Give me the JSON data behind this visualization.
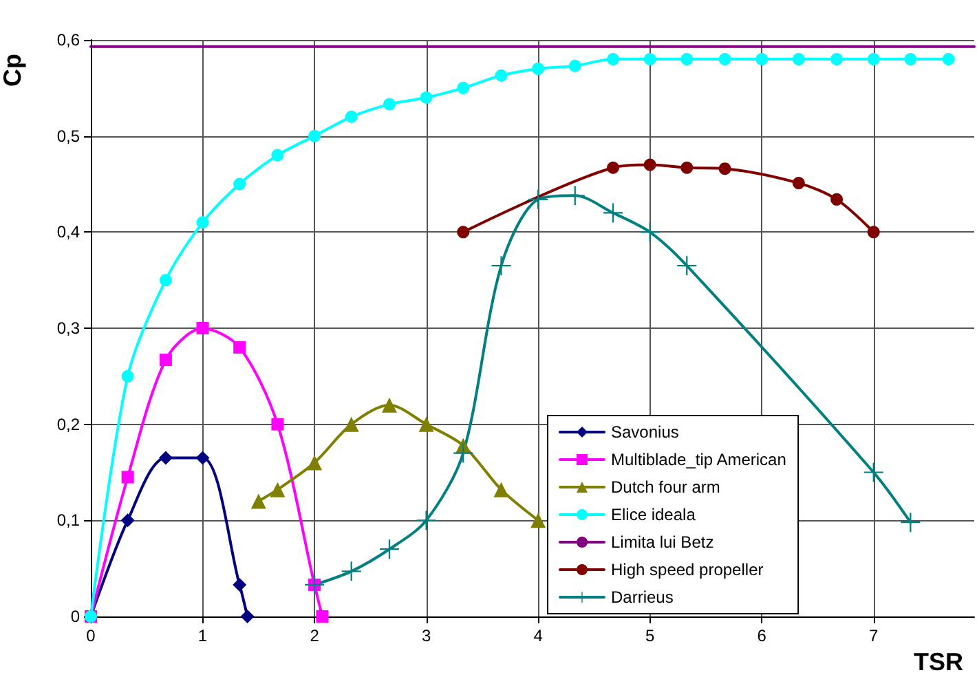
{
  "chart_data": {
    "type": "line",
    "xlabel": "TSR",
    "ylabel": "Cp",
    "xlim": [
      0,
      7.9
    ],
    "xticks": [
      0,
      1,
      2,
      3,
      4,
      5,
      6,
      7
    ],
    "ylim": [
      0,
      0.6
    ],
    "yticks": [
      {
        "value": 0,
        "label": "0"
      },
      {
        "value": 0.1,
        "label": "0,1"
      },
      {
        "value": 0.2,
        "label": "0,2"
      },
      {
        "value": 0.3,
        "label": "0,3"
      },
      {
        "value": 0.4,
        "label": "0,4"
      },
      {
        "value": 0.5,
        "label": "0,5"
      },
      {
        "value": 0.6,
        "label": "0,6"
      }
    ],
    "grid": true,
    "legend": "bottom right",
    "line_style": "solid",
    "series": [
      {
        "name": "Savonius",
        "color": "#000080",
        "marker": "diamond",
        "x": [
          0,
          0.33,
          0.67,
          1,
          1.33,
          1.4
        ],
        "values": [
          0,
          0.1,
          0.165,
          0.165,
          0.033,
          0
        ]
      },
      {
        "name": "Multiblade_tip American",
        "color": "#ff00ff",
        "marker": "square",
        "x": [
          0,
          0.33,
          0.67,
          1,
          1.33,
          1.67,
          2,
          2.07
        ],
        "values": [
          0,
          0.145,
          0.267,
          0.3,
          0.28,
          0.2,
          0.033,
          0
        ]
      },
      {
        "name": "Dutch four arm",
        "color": "#808000",
        "marker": "triangle",
        "x": [
          1.5,
          1.67,
          2,
          2.33,
          2.67,
          3,
          3.33,
          3.67,
          4
        ],
        "values": [
          0.12,
          0.132,
          0.16,
          0.2,
          0.22,
          0.2,
          0.178,
          0.132,
          0.1
        ]
      },
      {
        "name": "Elice ideala",
        "color": "#00ffff",
        "marker": "circle",
        "x": [
          0,
          0.33,
          0.67,
          1,
          1.33,
          1.67,
          2,
          2.33,
          2.67,
          3,
          3.33,
          3.67,
          4,
          4.33,
          4.67,
          5,
          5.33,
          5.67,
          6,
          6.33,
          6.67,
          7,
          7.33,
          7.67
        ],
        "values": [
          0,
          0.25,
          0.35,
          0.41,
          0.45,
          0.48,
          0.5,
          0.52,
          0.533,
          0.54,
          0.55,
          0.563,
          0.57,
          0.573,
          0.58,
          0.58,
          0.58,
          0.58,
          0.58,
          0.58,
          0.58,
          0.58,
          0.58,
          0.58
        ]
      },
      {
        "name": "Limita lui Betz",
        "color": "#800080",
        "marker": "none",
        "x": [
          0,
          7.9
        ],
        "values": [
          0.593,
          0.593
        ]
      },
      {
        "name": "High speed propeller",
        "color": "#800000",
        "marker": "circle",
        "x": [
          3.33,
          4.67,
          5,
          5.33,
          5.67,
          6.33,
          6.67,
          7
        ],
        "values": [
          0.4,
          0.467,
          0.47,
          0.467,
          0.466,
          0.451,
          0.434,
          0.4
        ]
      },
      {
        "name": "Darrieus",
        "color": "#008080",
        "marker": "cross",
        "x": [
          2,
          2.33,
          2.67,
          3,
          3.33,
          3.67,
          4,
          4.33,
          4.67,
          5,
          5.33,
          7,
          7.33
        ],
        "values": [
          0.033,
          0.047,
          0.07,
          0.1,
          0.17,
          0.365,
          0.434,
          0.438,
          0.42,
          0.4,
          0.365,
          0.15,
          0.098
        ]
      }
    ]
  }
}
